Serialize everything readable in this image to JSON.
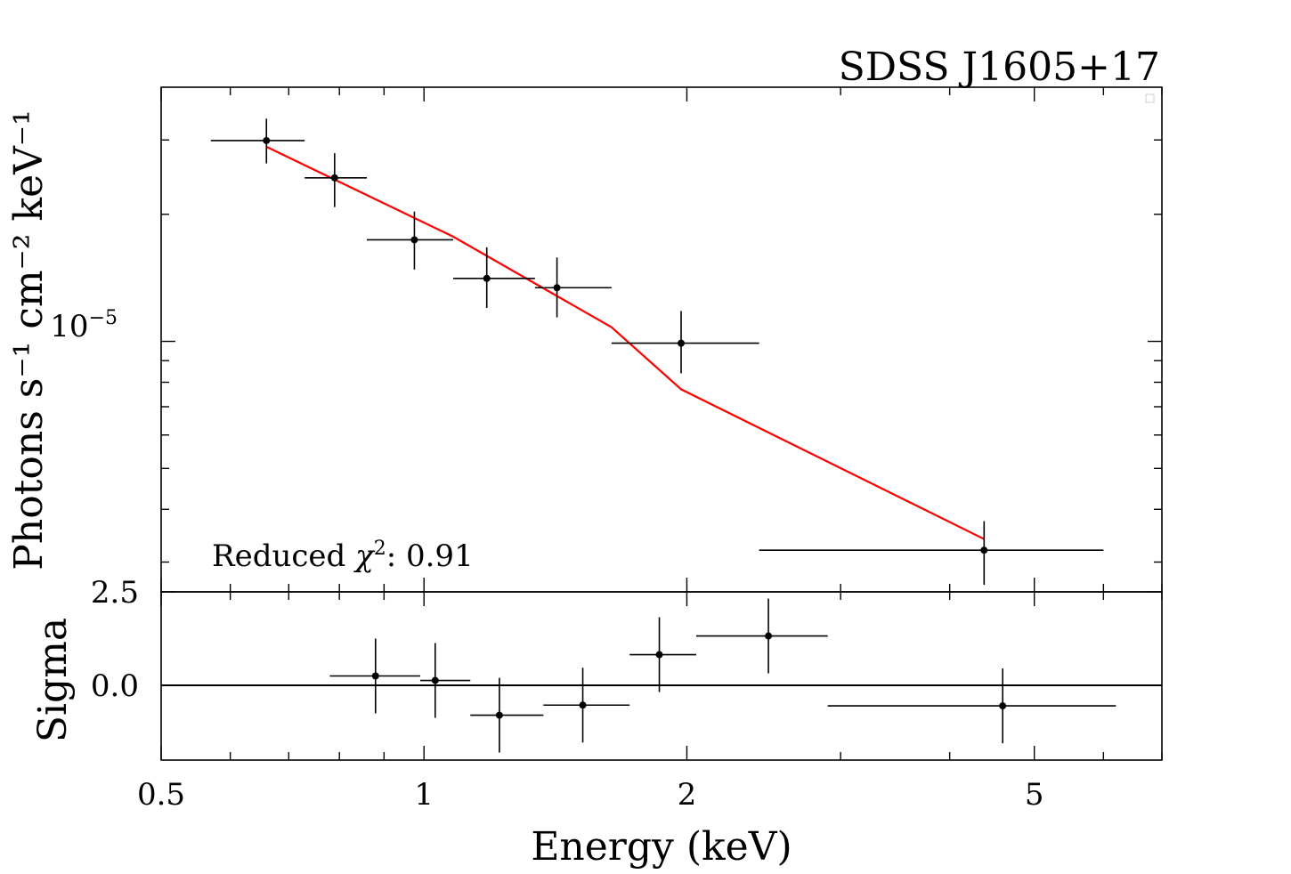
{
  "chart_data": [
    {
      "type": "scatter",
      "title": "SDSS J1605+17",
      "ylabel": "Photons s⁻¹ cm⁻² keV⁻¹",
      "yscale": "log",
      "xscale": "log",
      "xlim": [
        0.5,
        7.0
      ],
      "ylim": [
        2.55e-06,
        4e-05
      ],
      "ytick_labels": [
        {
          "base": "10",
          "exp": "−5",
          "value": 1e-05
        }
      ],
      "annotation": {
        "prefix": "Reduced ",
        "chi": "χ",
        "sup": "2",
        "suffix": ": 0.91"
      },
      "series": [
        {
          "role": "data",
          "color": "#000000",
          "points": [
            {
              "x": 0.66,
              "xlo": 0.57,
              "xhi": 0.73,
              "y": 2.99e-05,
              "ylo": 2.64e-05,
              "yhi": 3.37e-05
            },
            {
              "x": 0.79,
              "xlo": 0.73,
              "xhi": 0.86,
              "y": 2.44e-05,
              "ylo": 2.08e-05,
              "yhi": 2.79e-05
            },
            {
              "x": 0.975,
              "xlo": 0.86,
              "xhi": 1.08,
              "y": 1.74e-05,
              "ylo": 1.48e-05,
              "yhi": 2.03e-05
            },
            {
              "x": 1.18,
              "xlo": 1.08,
              "xhi": 1.34,
              "y": 1.41e-05,
              "ylo": 1.2e-05,
              "yhi": 1.67e-05
            },
            {
              "x": 1.42,
              "xlo": 1.34,
              "xhi": 1.64,
              "y": 1.34e-05,
              "ylo": 1.14e-05,
              "yhi": 1.58e-05
            },
            {
              "x": 1.97,
              "xlo": 1.64,
              "xhi": 2.42,
              "y": 9.9e-06,
              "ylo": 8.4e-06,
              "yhi": 1.18e-05
            },
            {
              "x": 4.38,
              "xlo": 2.42,
              "xhi": 6.0,
              "y": 3.2e-06,
              "ylo": 2.65e-06,
              "yhi": 3.75e-06
            }
          ]
        },
        {
          "role": "model",
          "color": "#ff0000",
          "points": [
            {
              "x": 0.66,
              "y": 2.89e-05
            },
            {
              "x": 1.08,
              "y": 1.77e-05
            },
            {
              "x": 1.64,
              "y": 1.08e-05
            },
            {
              "x": 1.97,
              "y": 7.7e-06
            },
            {
              "x": 4.38,
              "y": 3.4e-06
            }
          ]
        }
      ]
    },
    {
      "type": "scatter",
      "xlabel": "Energy (keV)",
      "ylabel": "Sigma",
      "xscale": "log",
      "xlim": [
        0.5,
        7.0
      ],
      "ylim": [
        -2.0,
        2.5
      ],
      "xtick_labels": [
        {
          "label": "0.5",
          "value": 0.5
        },
        {
          "label": "1",
          "value": 1
        },
        {
          "label": "2",
          "value": 2
        },
        {
          "label": "5",
          "value": 5
        }
      ],
      "ytick_labels": [
        {
          "label": "2.5",
          "value": 2.5
        },
        {
          "label": "0.0",
          "value": 0.0
        }
      ],
      "reference_line": 0.0,
      "series": [
        {
          "role": "residuals",
          "color": "#000000",
          "points": [
            {
              "x": 0.88,
              "xlo": 0.78,
              "xhi": 0.99,
              "y": 0.25,
              "ylo": -0.75,
              "yhi": 1.25
            },
            {
              "x": 1.03,
              "xlo": 0.99,
              "xhi": 1.13,
              "y": 0.13,
              "ylo": -0.87,
              "yhi": 1.13
            },
            {
              "x": 1.22,
              "xlo": 1.13,
              "xhi": 1.37,
              "y": -0.8,
              "ylo": -1.8,
              "yhi": 0.2
            },
            {
              "x": 1.52,
              "xlo": 1.37,
              "xhi": 1.72,
              "y": -0.53,
              "ylo": -1.53,
              "yhi": 0.47
            },
            {
              "x": 1.86,
              "xlo": 1.72,
              "xhi": 2.05,
              "y": 0.82,
              "ylo": -0.18,
              "yhi": 1.82
            },
            {
              "x": 2.48,
              "xlo": 2.05,
              "xhi": 2.9,
              "y": 1.32,
              "ylo": 0.32,
              "yhi": 2.32
            },
            {
              "x": 4.6,
              "xlo": 2.9,
              "xhi": 6.2,
              "y": -0.55,
              "ylo": -1.55,
              "yhi": 0.45
            }
          ]
        }
      ]
    }
  ]
}
